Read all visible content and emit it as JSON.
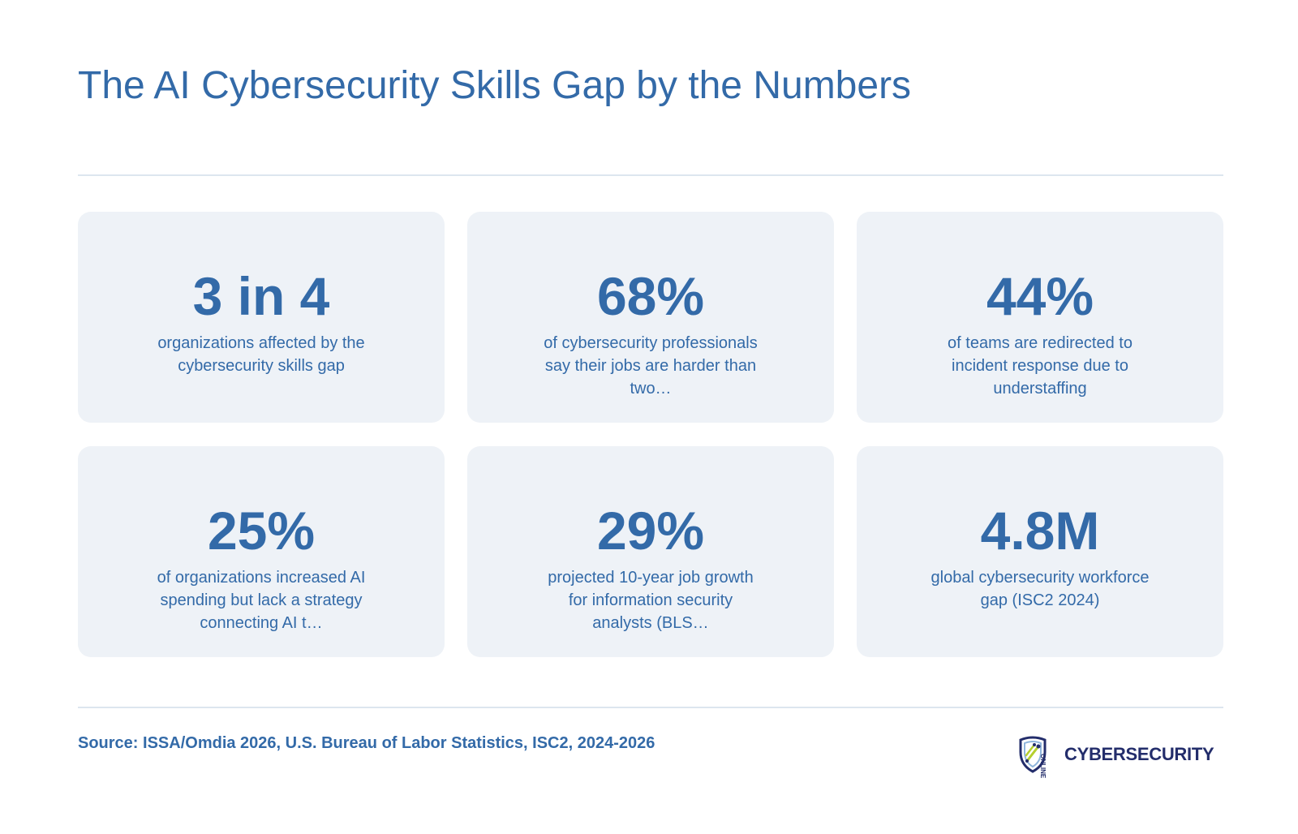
{
  "header": {
    "title": "The AI Cybersecurity Skills Gap by the Numbers"
  },
  "cards": [
    {
      "stat": "3 in 4",
      "description": "organizations affected by the cybersecurity skills gap"
    },
    {
      "stat": "68%",
      "description": "of cybersecurity professionals say their jobs are harder than two…"
    },
    {
      "stat": "44%",
      "description": "of teams are redirected to incident response due to understaffing"
    },
    {
      "stat": "25%",
      "description": "of organizations increased AI spending but lack a strategy connecting AI t…"
    },
    {
      "stat": "29%",
      "description": "projected 10-year job growth for information security analysts (BLS…"
    },
    {
      "stat": "4.8M",
      "description": "global cybersecurity workforce gap (ISC2 2024)"
    }
  ],
  "footer": {
    "source": "Source: ISSA/Omdia 2026, U.S. Bureau of Labor Statistics, ISC2, 2024-2026",
    "logo": {
      "small_text": "ONLINE",
      "word": "CYBERSECURITY",
      "icon": "shield-icon"
    }
  },
  "colors": {
    "accent": "#336aa8",
    "card_background": "#eef2f7",
    "divider": "#dde6ef",
    "logo_navy": "#232d6b",
    "logo_lime": "#b5cf2e",
    "logo_light_blue": "#8fb5dc"
  }
}
